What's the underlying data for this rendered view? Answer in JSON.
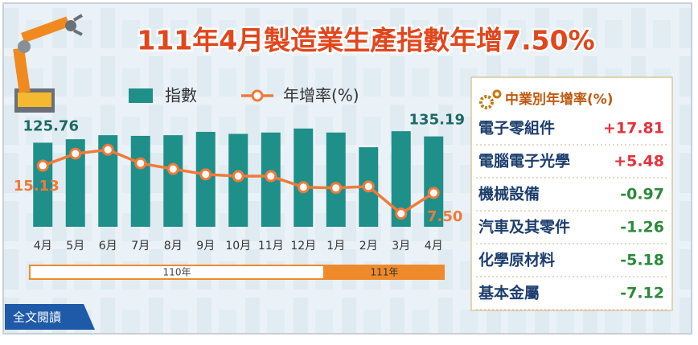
{
  "title": "111年4月製造業生產指數年增7.50%",
  "chart_data": {
    "type": "bar",
    "categories": [
      "4月",
      "5月",
      "6月",
      "7月",
      "8月",
      "9月",
      "10月",
      "11月",
      "12月",
      "1月",
      "2月",
      "3月",
      "4月"
    ],
    "series": [
      {
        "name": "指數",
        "type": "bar",
        "color": "#1f8f8a",
        "values": [
          125.76,
          131,
          137,
          136,
          137,
          142,
          139,
          141,
          147,
          141,
          119,
          143,
          135.19
        ],
        "value_labels": [
          "125.76",
          null,
          null,
          null,
          null,
          null,
          null,
          null,
          null,
          null,
          null,
          null,
          "135.19"
        ]
      },
      {
        "name": "年增率(%)",
        "type": "line",
        "axis": "y2",
        "color": "#f07a3a",
        "values": [
          15.13,
          18.5,
          19.6,
          15.8,
          14.2,
          12.7,
          12.2,
          12.2,
          9.1,
          8.9,
          9.3,
          1.7,
          7.5
        ],
        "value_labels": [
          "15.13",
          null,
          null,
          null,
          null,
          null,
          null,
          null,
          null,
          null,
          null,
          null,
          "7.50"
        ]
      }
    ],
    "ylim": [
      0,
      160
    ],
    "y2lim": [
      -2,
      28
    ],
    "periods": [
      "110年",
      "111年"
    ]
  },
  "industry_table": {
    "title": "中業別年增率(%)",
    "rows": [
      {
        "name": "電子零組件",
        "value": "+17.81"
      },
      {
        "name": "電腦電子光學",
        "value": "+5.48"
      },
      {
        "name": "機械設備",
        "value": "-0.97"
      },
      {
        "name": "汽車及其零件",
        "value": "-1.26"
      },
      {
        "name": "化學原材料",
        "value": "-5.18"
      },
      {
        "name": "基本金屬",
        "value": "-7.12"
      }
    ]
  },
  "button": "全文閱讀"
}
